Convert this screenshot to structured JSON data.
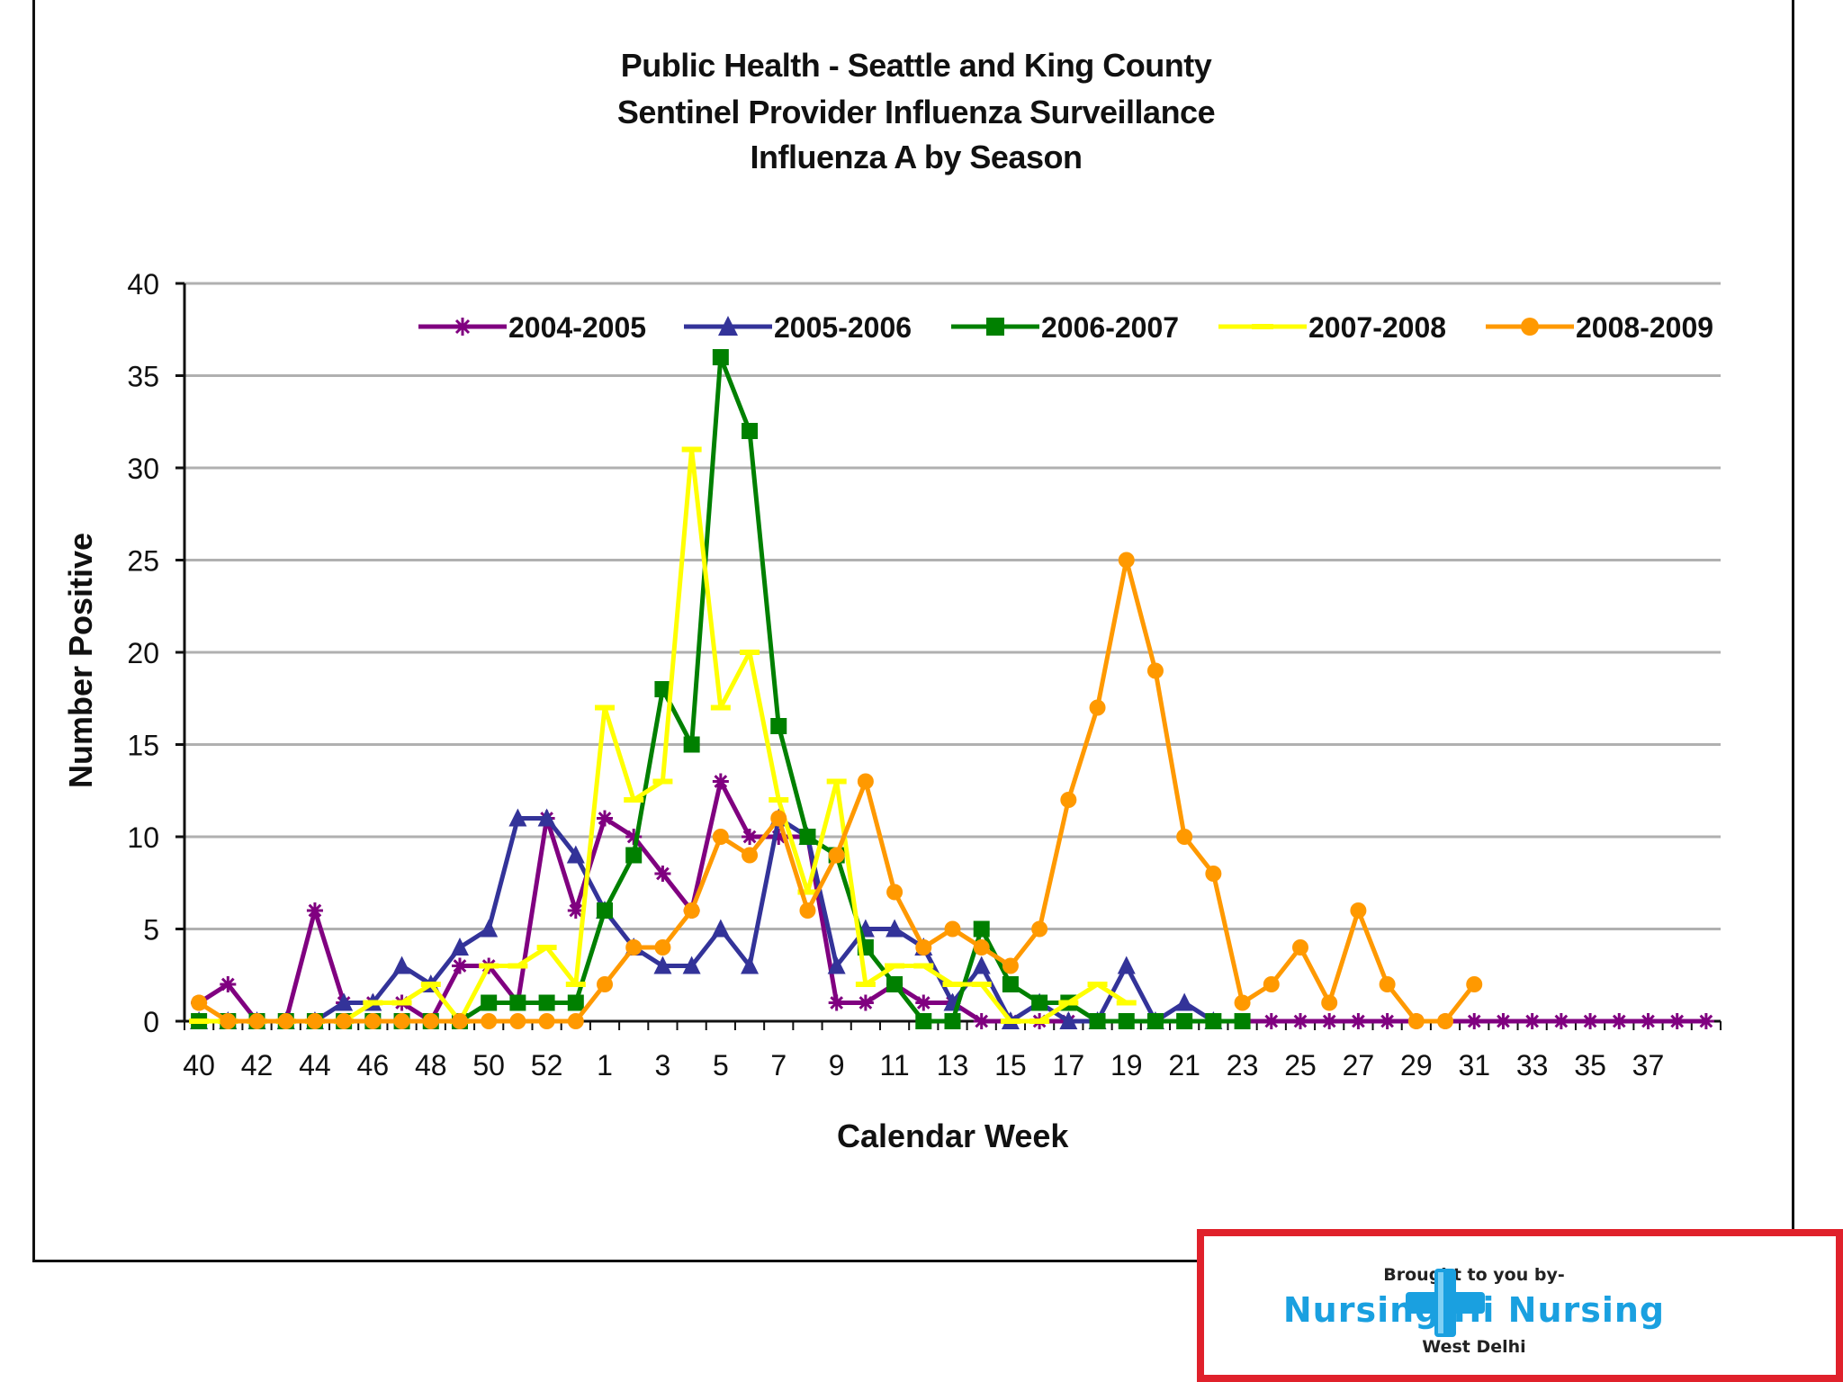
{
  "chart_data": {
    "type": "line",
    "title_lines": [
      "Public Health - Seattle and King County",
      "Sentinel Provider Influenza Surveillance",
      "Influenza A by Season"
    ],
    "xlabel": "Calendar Week",
    "ylabel": "Number Positive",
    "ylim": [
      0,
      40
    ],
    "yticks": [
      0,
      5,
      10,
      15,
      20,
      25,
      30,
      35,
      40
    ],
    "grid": true,
    "legend_position": "top",
    "x_categories": [
      "40",
      "41",
      "42",
      "43",
      "44",
      "45",
      "46",
      "47",
      "48",
      "49",
      "50",
      "51",
      "52",
      "53",
      "1",
      "2",
      "3",
      "4",
      "5",
      "6",
      "7",
      "8",
      "9",
      "10",
      "11",
      "12",
      "13",
      "14",
      "15",
      "16",
      "17",
      "18",
      "19",
      "20",
      "21",
      "22",
      "23",
      "24",
      "25",
      "26",
      "27",
      "28",
      "29",
      "30",
      "31",
      "32",
      "33",
      "34",
      "35",
      "36",
      "37",
      "38",
      "39"
    ],
    "x_tick_labels": [
      "40",
      "42",
      "44",
      "46",
      "48",
      "50",
      "52",
      "1",
      "3",
      "5",
      "7",
      "9",
      "11",
      "13",
      "15",
      "17",
      "19",
      "21",
      "23",
      "25",
      "27",
      "29",
      "31",
      "33",
      "35",
      "37"
    ],
    "series": [
      {
        "name": "2004-2005",
        "color": "#800080",
        "marker": "star",
        "values": [
          1,
          2,
          0,
          0,
          6,
          1,
          1,
          1,
          0,
          3,
          3,
          1,
          11,
          6,
          11,
          10,
          8,
          6,
          13,
          10,
          10,
          10,
          1,
          1,
          2,
          1,
          1,
          0,
          0,
          0,
          0,
          0,
          0,
          0,
          0,
          0,
          0,
          0,
          0,
          0,
          0,
          0,
          0,
          0,
          0,
          0,
          0,
          0,
          0,
          0,
          0,
          0,
          0
        ]
      },
      {
        "name": "2005-2006",
        "color": "#333399",
        "marker": "triangle",
        "values": [
          0,
          0,
          0,
          0,
          0,
          1,
          1,
          3,
          2,
          4,
          5,
          11,
          11,
          9,
          6,
          4,
          3,
          3,
          5,
          3,
          11,
          10,
          3,
          5,
          5,
          4,
          1,
          3,
          0,
          1,
          0,
          0,
          3,
          0,
          1,
          0
        ]
      },
      {
        "name": "2006-2007",
        "color": "#008000",
        "marker": "square",
        "values": [
          0,
          0,
          0,
          0,
          0,
          0,
          0,
          0,
          0,
          0,
          1,
          1,
          1,
          1,
          6,
          9,
          18,
          15,
          36,
          32,
          16,
          10,
          9,
          4,
          2,
          0,
          0,
          5,
          2,
          1,
          1,
          0,
          0,
          0,
          0,
          0,
          0
        ]
      },
      {
        "name": "2007-2008",
        "color": "#ffff00",
        "marker": "dash",
        "values": [
          0,
          0,
          0,
          0,
          0,
          0,
          1,
          1,
          2,
          0,
          3,
          3,
          4,
          2,
          17,
          12,
          13,
          31,
          17,
          20,
          12,
          7,
          13,
          2,
          3,
          3,
          2,
          2,
          0,
          0,
          1,
          2,
          1
        ]
      },
      {
        "name": "2008-2009",
        "color": "#ff9900",
        "marker": "circle",
        "values": [
          1,
          0,
          0,
          0,
          0,
          0,
          0,
          0,
          0,
          0,
          0,
          0,
          0,
          0,
          2,
          4,
          4,
          6,
          10,
          9,
          11,
          6,
          9,
          13,
          7,
          4,
          5,
          4,
          3,
          5,
          12,
          17,
          25,
          19,
          10,
          8,
          1,
          2,
          4,
          1,
          6,
          2,
          0,
          0,
          2
        ]
      }
    ]
  },
  "sponsor": {
    "top_text": "Brought to you by-",
    "name": "Nursing Hi Nursing",
    "sub_text": "West Delhi",
    "accent_color": "#1aa0e0",
    "border_color": "#e0212b"
  }
}
